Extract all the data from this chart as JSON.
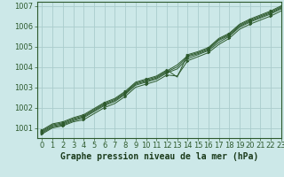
{
  "title": "Graphe pression niveau de la mer (hPa)",
  "bg_color": "#cce8e8",
  "plot_bg_color": "#cce8e8",
  "grid_color": "#aacccc",
  "line_color": "#2d5a2d",
  "marker_color": "#2d5a2d",
  "xlim": [
    -0.5,
    23
  ],
  "ylim": [
    1000.5,
    1007.2
  ],
  "yticks": [
    1001,
    1002,
    1003,
    1004,
    1005,
    1006,
    1007
  ],
  "xticks": [
    0,
    1,
    2,
    3,
    4,
    5,
    6,
    7,
    8,
    9,
    10,
    11,
    12,
    13,
    14,
    15,
    16,
    17,
    18,
    19,
    20,
    21,
    22,
    23
  ],
  "lines": [
    [
      1000.7,
      1001.0,
      1001.1,
      1001.3,
      1001.4,
      1001.7,
      1002.0,
      1002.2,
      1002.55,
      1003.0,
      1003.15,
      1003.3,
      1003.6,
      1003.55,
      1004.3,
      1004.5,
      1004.7,
      1005.1,
      1005.4,
      1005.85,
      1006.1,
      1006.3,
      1006.5,
      1006.75
    ],
    [
      1000.75,
      1001.05,
      1001.15,
      1001.35,
      1001.5,
      1001.8,
      1002.1,
      1002.3,
      1002.65,
      1003.1,
      1003.25,
      1003.4,
      1003.7,
      1003.9,
      1004.4,
      1004.6,
      1004.8,
      1005.2,
      1005.5,
      1005.95,
      1006.2,
      1006.4,
      1006.6,
      1006.85
    ],
    [
      1000.8,
      1001.1,
      1001.2,
      1001.4,
      1001.55,
      1001.85,
      1002.15,
      1002.35,
      1002.7,
      1003.15,
      1003.3,
      1003.45,
      1003.75,
      1004.0,
      1004.5,
      1004.65,
      1004.85,
      1005.3,
      1005.55,
      1006.0,
      1006.25,
      1006.45,
      1006.65,
      1006.9
    ],
    [
      1000.85,
      1001.15,
      1001.25,
      1001.45,
      1001.6,
      1001.9,
      1002.2,
      1002.4,
      1002.75,
      1003.2,
      1003.35,
      1003.5,
      1003.8,
      1004.1,
      1004.55,
      1004.7,
      1004.9,
      1005.35,
      1005.6,
      1006.05,
      1006.3,
      1006.5,
      1006.7,
      1006.95
    ],
    [
      1000.9,
      1001.2,
      1001.3,
      1001.5,
      1001.65,
      1001.95,
      1002.25,
      1002.45,
      1002.8,
      1003.25,
      1003.4,
      1003.55,
      1003.85,
      1003.5,
      1004.6,
      1004.75,
      1004.95,
      1005.4,
      1005.65,
      1006.1,
      1006.35,
      1006.55,
      1006.75,
      1007.0
    ]
  ],
  "title_fontsize": 7,
  "tick_fontsize": 6,
  "ylabel_fontsize": 6
}
